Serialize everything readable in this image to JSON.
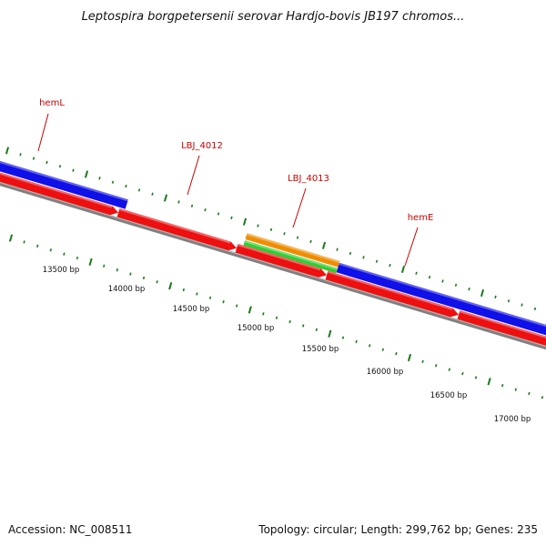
{
  "title": "Leptospira borgpetersenii serovar Hardjo-bovis JB197 chromos...",
  "footer": {
    "accession": "Accession: NC_008511",
    "stats": "Topology: circular; Length: 299,762 bp; Genes: 235"
  },
  "colors": {
    "forward_gene": "#1010e8",
    "reverse_gene": "#ee1010",
    "backbone": "#808080",
    "tick": "#1a7a1a",
    "label": "#cc0000",
    "orange_feature": "#f08c00",
    "green_feature": "#33cc33"
  },
  "genes": [
    {
      "name": "hemL",
      "track": "forward"
    },
    {
      "name": "LBJ_4012",
      "track": "reverse"
    },
    {
      "name": "LBJ_4013",
      "track": "forward"
    },
    {
      "name": "hemE",
      "track": "forward"
    }
  ],
  "scale_labels": [
    "13500 bp",
    "14000 bp",
    "14500 bp",
    "15000 bp",
    "15500 bp",
    "16000 bp",
    "16500 bp",
    "17000 bp"
  ]
}
